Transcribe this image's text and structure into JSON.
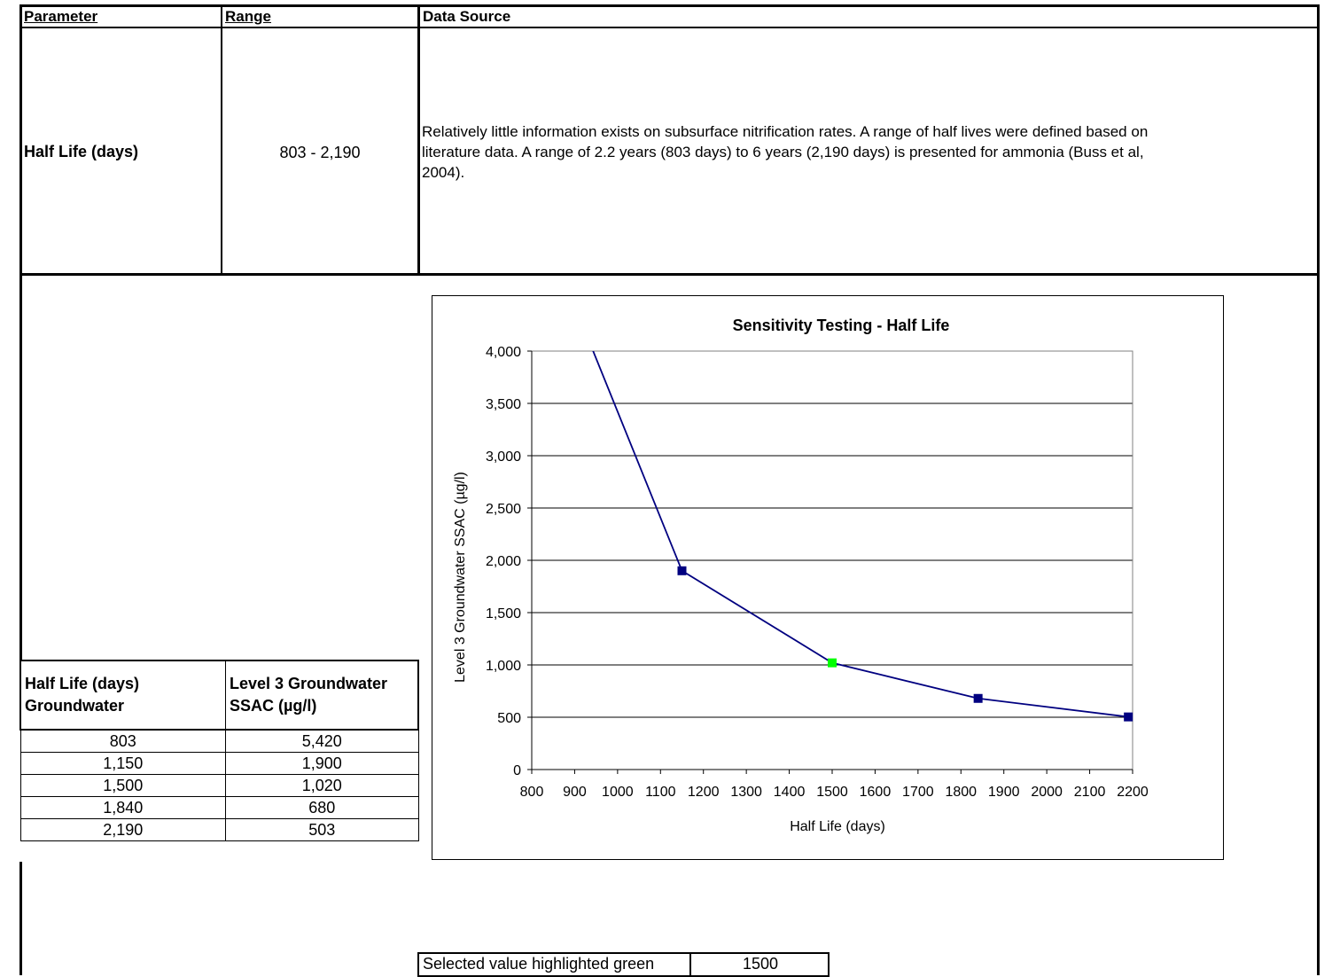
{
  "top_table": {
    "headers": {
      "parameter": "Parameter",
      "range": "Range",
      "source": "Data Source"
    },
    "row": {
      "parameter": "Half Life (days)",
      "range": "803 - 2,190",
      "source_lines": [
        "Relatively little information exists on subsurface nitrification rates. A range of half lives were defined based on",
        "literature data. A range of 2.2 years (803 days) to 6 years (2,190 days) is presented for ammonia (Buss et al,",
        "2004)."
      ]
    }
  },
  "sensitivity_table": {
    "header_col1": [
      "Half Life (days)",
      "Groundwater"
    ],
    "header_col2": [
      "Level 3 Groundwater",
      "SSAC (µg/l)"
    ],
    "rows": [
      {
        "half_life": "803",
        "ssac": "5,420"
      },
      {
        "half_life": "1,150",
        "ssac": "1,900"
      },
      {
        "half_life": "1,500",
        "ssac": "1,020"
      },
      {
        "half_life": "1,840",
        "ssac": "680"
      },
      {
        "half_life": "2,190",
        "ssac": "503"
      }
    ]
  },
  "selected": {
    "label": "Selected value highlighted green",
    "value": "1500"
  },
  "chart_data": {
    "type": "line",
    "title": "Sensitivity Testing - Half Life",
    "xlabel": "Half Life (days)",
    "ylabel": "Level 3 Groundwater SSAC (µg/l)",
    "xlim": [
      800,
      2200
    ],
    "ylim": [
      0,
      4000
    ],
    "x_ticks": [
      800,
      900,
      1000,
      1100,
      1200,
      1300,
      1400,
      1500,
      1600,
      1700,
      1800,
      1900,
      2000,
      2100,
      2200
    ],
    "y_ticks": [
      0,
      500,
      1000,
      1500,
      2000,
      2500,
      3000,
      3500,
      4000
    ],
    "y_tick_labels": [
      "0",
      "500",
      "1,000",
      "1,500",
      "2,000",
      "2,500",
      "3,000",
      "3,500",
      "4,000"
    ],
    "grid": "horizontal",
    "series": [
      {
        "x": [
          803,
          1150,
          1500,
          1840,
          2190
        ],
        "y": [
          5420,
          1900,
          1020,
          680,
          503
        ],
        "color": "#000080",
        "marker_color": "#000080",
        "highlight_index": 2,
        "highlight_color": "#00ff00"
      }
    ]
  }
}
